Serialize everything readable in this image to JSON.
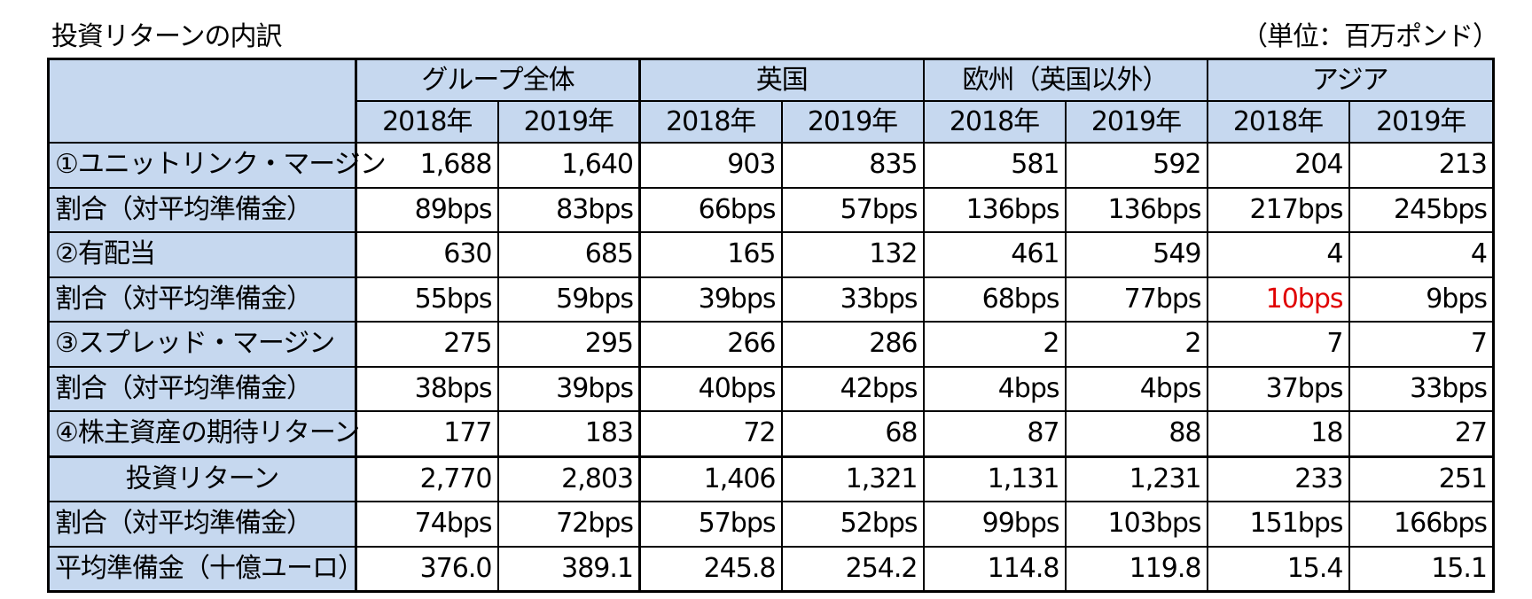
{
  "title": "投資リターンの内訳",
  "unit": "（単位：百万ポンド）",
  "groups": [
    {
      "name": "グループ全体"
    },
    {
      "name": "英国"
    },
    {
      "name": "欧州（英国以外）"
    },
    {
      "name": "アジア"
    }
  ],
  "years": [
    "2018年",
    "2019年",
    "2018年",
    "2019年",
    "2018年",
    "2019年",
    "2018年",
    "2019年"
  ],
  "rows": [
    {
      "label": "①ユニットリンク・マージン",
      "style": "left",
      "values": [
        "1,688",
        "1,640",
        "903",
        "835",
        "581",
        "592",
        "204",
        "213"
      ]
    },
    {
      "label": "割合（対平均準備金）",
      "style": "indent",
      "values": [
        "89bps",
        "83bps",
        "66bps",
        "57bps",
        "136bps",
        "136bps",
        "217bps",
        "245bps"
      ]
    },
    {
      "label": "②有配当",
      "style": "left",
      "values": [
        "630",
        "685",
        "165",
        "132",
        "461",
        "549",
        "4",
        "4"
      ]
    },
    {
      "label": "割合（対平均準備金）",
      "style": "indent",
      "values": [
        "55bps",
        "59bps",
        "39bps",
        "33bps",
        "68bps",
        "77bps",
        "10bps",
        "9bps"
      ],
      "red_index": 6
    },
    {
      "label": "③スプレッド・マージン",
      "style": "left",
      "values": [
        "275",
        "295",
        "266",
        "286",
        "2",
        "2",
        "7",
        "7"
      ]
    },
    {
      "label": "割合（対平均準備金）",
      "style": "indent",
      "values": [
        "38bps",
        "39bps",
        "40bps",
        "42bps",
        "4bps",
        "4bps",
        "37bps",
        "33bps"
      ]
    },
    {
      "label": "④株主資産の期待リターン",
      "style": "left",
      "values": [
        "177",
        "183",
        "72",
        "68",
        "87",
        "88",
        "18",
        "27"
      ]
    },
    {
      "label": "投資リターン",
      "style": "center",
      "values": [
        "2,770",
        "2,803",
        "1,406",
        "1,321",
        "1,131",
        "1,231",
        "233",
        "251"
      ],
      "thick_top": true
    },
    {
      "label": "割合（対平均準備金）",
      "style": "indent",
      "values": [
        "74bps",
        "72bps",
        "57bps",
        "52bps",
        "99bps",
        "103bps",
        "151bps",
        "166bps"
      ]
    },
    {
      "label": "平均準備金（十億ユーロ）",
      "style": "left",
      "values": [
        "376.0",
        "389.1",
        "245.8",
        "254.2",
        "114.8",
        "119.8",
        "15.4",
        "15.1"
      ]
    }
  ],
  "colors": {
    "header_bg": "#c6d8ef",
    "highlight_red": "#e00000"
  }
}
